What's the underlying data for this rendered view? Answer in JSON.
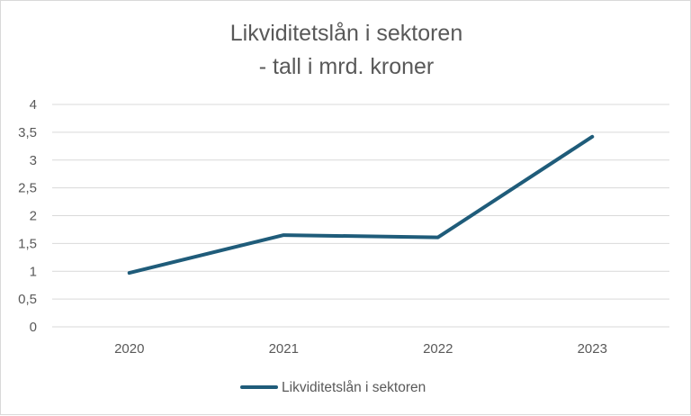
{
  "chart_data": {
    "type": "line",
    "title": [
      "Likviditetslån i sektoren",
      "- tall i mrd. kroner"
    ],
    "xlabel": "",
    "ylabel": "",
    "categories": [
      "2020",
      "2021",
      "2022",
      "2023"
    ],
    "series": [
      {
        "name": "Likviditetslån i sektoren",
        "values": [
          0.97,
          1.65,
          1.61,
          3.42
        ],
        "color": "#1f5c7a"
      }
    ],
    "ylim": [
      0,
      4
    ],
    "yticks": [
      0,
      0.5,
      1,
      1.5,
      2,
      2.5,
      3,
      3.5,
      4
    ],
    "ytick_labels": [
      "0",
      "0,5",
      "1",
      "1,5",
      "2",
      "2,5",
      "3",
      "3,5",
      "4"
    ],
    "grid": true,
    "legend_position": "bottom",
    "gridline_color": "#d9d9d9",
    "text_color": "#595959"
  }
}
